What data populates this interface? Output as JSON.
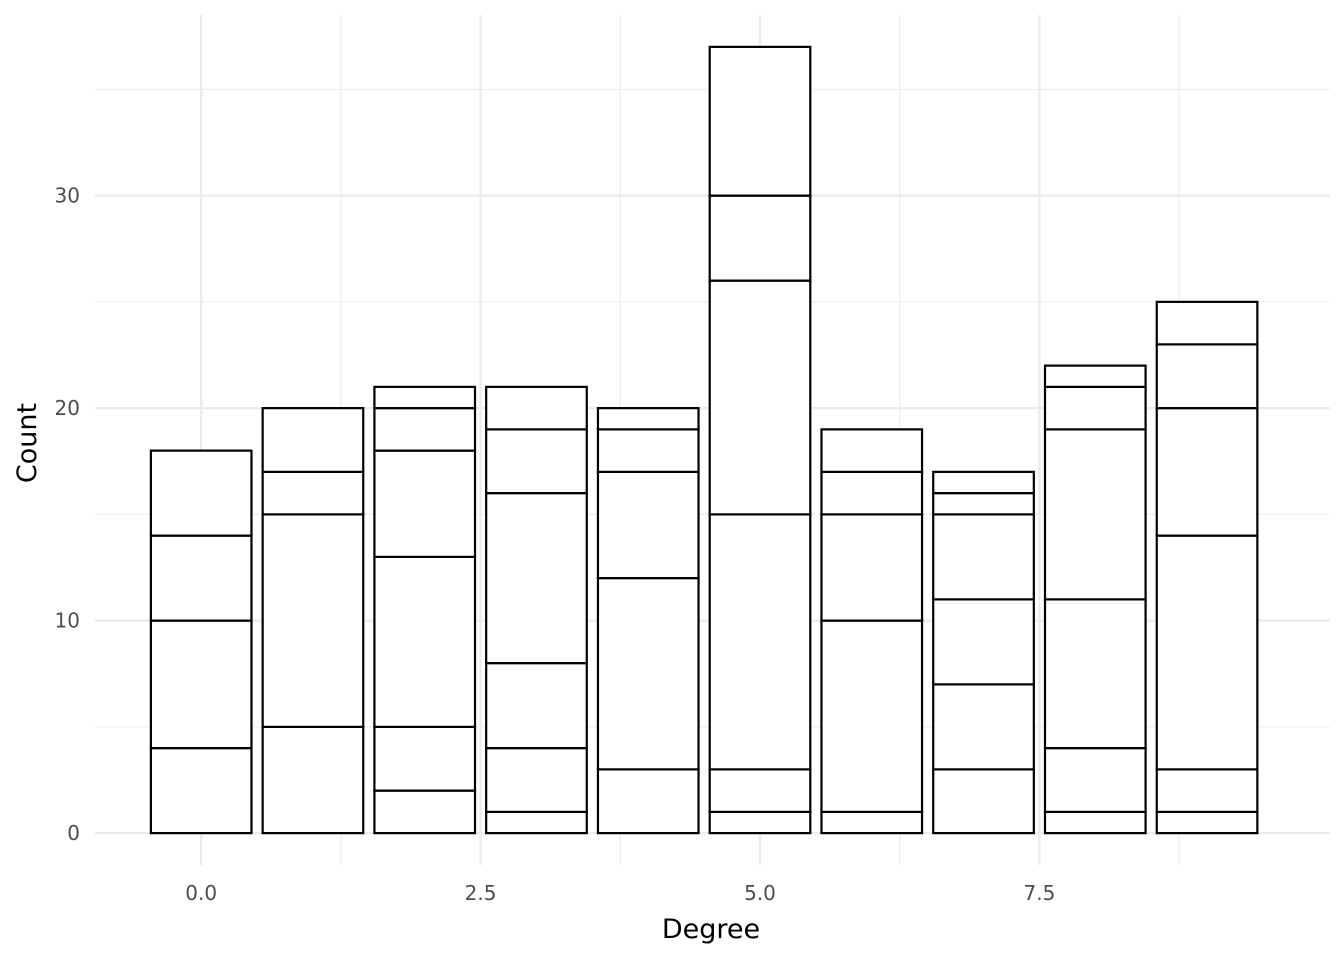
{
  "chart_data": {
    "type": "bar",
    "stacked": true,
    "xlabel": "Degree",
    "ylabel": "Count",
    "xlim": [
      -0.95,
      10.1
    ],
    "ylim": [
      -1.5,
      38.5
    ],
    "x_ticks": [
      0.0,
      2.5,
      5.0,
      7.5
    ],
    "x_tick_labels": [
      "0.0",
      "2.5",
      "5.0",
      "7.5"
    ],
    "y_ticks": [
      0,
      10,
      20,
      30
    ],
    "y_tick_labels": [
      "0",
      "10",
      "20",
      "30"
    ],
    "x_minor_gridlines": [
      1.25,
      3.75,
      6.25,
      8.75
    ],
    "y_minor_gridlines": [
      5,
      15,
      25,
      35
    ],
    "grid": true,
    "bar_width": 0.9,
    "fill_color": "#ffffff",
    "outline_color": "#000000",
    "grid_color": "#ebebeb",
    "bars": [
      {
        "x": 0,
        "total": 18,
        "boundaries": [
          4,
          10,
          14,
          18
        ]
      },
      {
        "x": 1,
        "total": 20,
        "boundaries": [
          5,
          15,
          17,
          20
        ]
      },
      {
        "x": 2,
        "total": 21,
        "boundaries": [
          2,
          5,
          13,
          18,
          20,
          21
        ]
      },
      {
        "x": 3,
        "total": 21,
        "boundaries": [
          1,
          4,
          8,
          16,
          19,
          21
        ]
      },
      {
        "x": 4,
        "total": 20,
        "boundaries": [
          3,
          12,
          17,
          19,
          20
        ]
      },
      {
        "x": 5,
        "total": 37,
        "boundaries": [
          1,
          3,
          15,
          26,
          30,
          37
        ]
      },
      {
        "x": 6,
        "total": 19,
        "boundaries": [
          1,
          10,
          15,
          17,
          19
        ]
      },
      {
        "x": 7,
        "total": 17,
        "boundaries": [
          3,
          7,
          11,
          15,
          16,
          17
        ]
      },
      {
        "x": 8,
        "total": 22,
        "boundaries": [
          1,
          4,
          11,
          19,
          21,
          22
        ]
      },
      {
        "x": 9,
        "total": 25,
        "boundaries": [
          1,
          3,
          14,
          20,
          23,
          25
        ]
      }
    ]
  }
}
